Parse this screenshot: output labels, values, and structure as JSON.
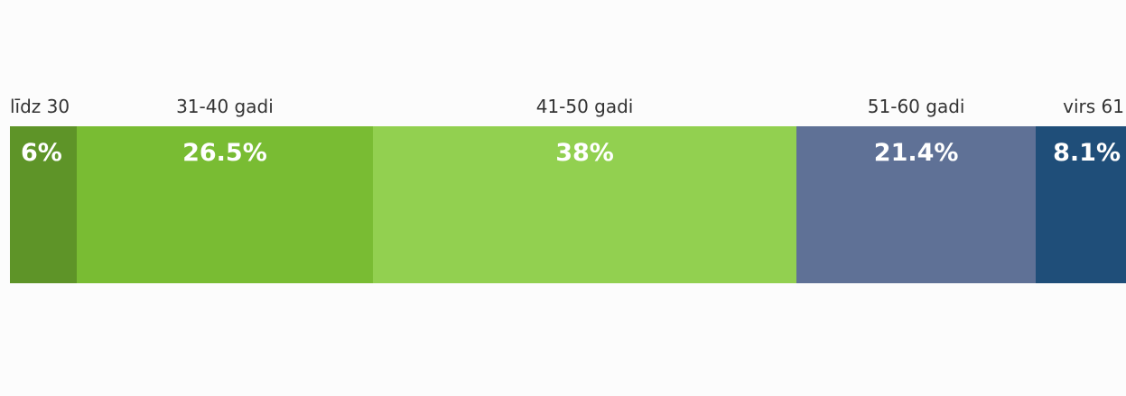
{
  "chart_data": {
    "type": "bar",
    "orientation": "horizontal-stacked-100",
    "categories": [
      "līdz 30",
      "31-40 gadi",
      "41-50 gadi",
      "51-60 gadi",
      "virs 61"
    ],
    "values": [
      6,
      26.5,
      38,
      21.4,
      8.1
    ],
    "value_labels": [
      "6%",
      "26.5%",
      "38%",
      "21.4%",
      "8.1%"
    ],
    "colors": [
      "#5e9428",
      "#79bc33",
      "#92d050",
      "#5f7196",
      "#1f4e79"
    ],
    "title": "",
    "xlabel": "",
    "ylabel": "",
    "legend": "none",
    "grid": false
  }
}
